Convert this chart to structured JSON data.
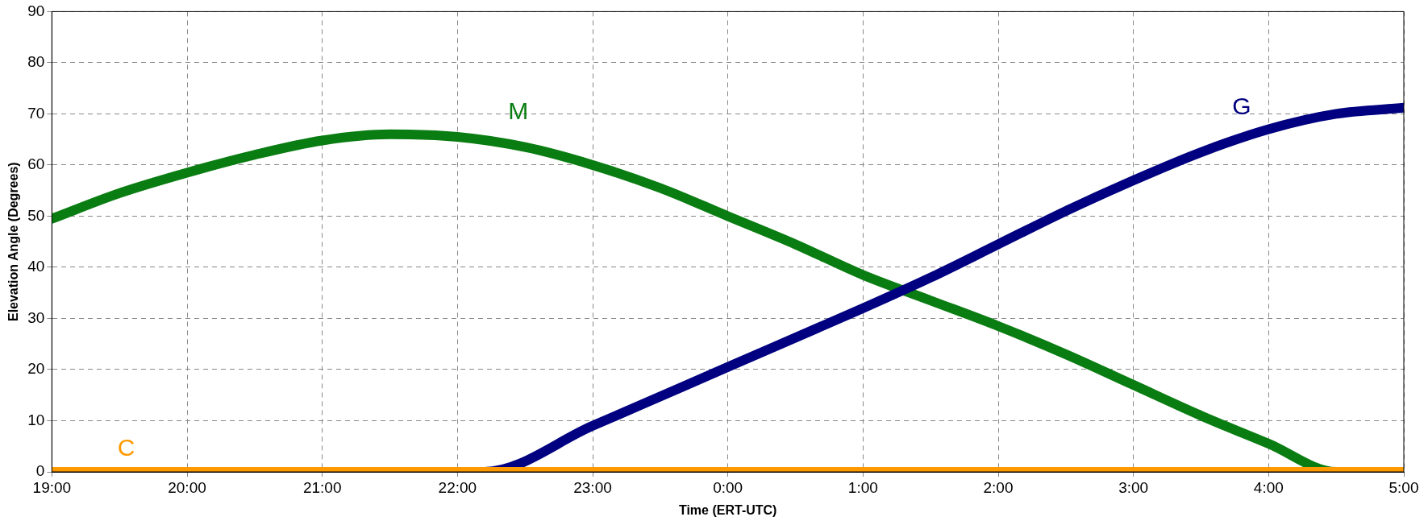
{
  "chart_data": {
    "type": "line",
    "xlabel": "Time (ERT-UTC)",
    "ylabel": "Elevation Angle (Degrees)",
    "xlim": [
      "--01-01T19:00",
      "--01-02T05:00"
    ],
    "xticks": [
      {
        "value": "--01-01T19:00",
        "label": "19:00"
      },
      {
        "value": "--01-01T20:00",
        "label": "20:00"
      },
      {
        "value": "--01-01T21:00",
        "label": "21:00"
      },
      {
        "value": "--01-01T22:00",
        "label": "22:00"
      },
      {
        "value": "--01-01T23:00",
        "label": "23:00"
      },
      {
        "value": "--01-02T00:00",
        "label": "0:00"
      },
      {
        "value": "--01-02T01:00",
        "label": "1:00"
      },
      {
        "value": "--01-02T02:00",
        "label": "2:00"
      },
      {
        "value": "--01-02T03:00",
        "label": "3:00"
      },
      {
        "value": "--01-02T04:00",
        "label": "4:00"
      },
      {
        "value": "--01-02T05:00",
        "label": "5:00"
      }
    ],
    "ylim": [
      0,
      90
    ],
    "yticks": [
      0,
      10,
      20,
      30,
      40,
      50,
      60,
      70,
      80,
      90
    ],
    "grid": true,
    "marker": "none",
    "line_style": "solid",
    "legend": false,
    "series": [
      {
        "name": "M",
        "color": "#0a7d12",
        "x": [
          "--01-01T19:00",
          "--01-01T19:30",
          "--01-01T20:00",
          "--01-01T20:30",
          "--01-01T21:00",
          "--01-01T21:30",
          "--01-01T22:00",
          "--01-01T22:30",
          "--01-01T23:00",
          "--01-01T23:30",
          "--01-02T00:00",
          "--01-02T00:30",
          "--01-02T01:00",
          "--01-02T01:30",
          "--01-02T02:00",
          "--01-02T02:30",
          "--01-02T03:00",
          "--01-02T03:30",
          "--01-02T04:00",
          "--01-02T04:30",
          "--01-02T05:00"
        ],
        "values": [
          49.5,
          54.5,
          58.5,
          62,
          64.8,
          66,
          65.5,
          63.5,
          60,
          55.5,
          50,
          44.5,
          38.5,
          33.5,
          28.5,
          23,
          17,
          11,
          5.5,
          0,
          0
        ]
      },
      {
        "name": "G",
        "color": "#000080",
        "x": [
          "--01-01T19:00",
          "--01-01T22:12",
          "--01-01T23:00",
          "--01-02T00:00",
          "--01-02T01:00",
          "--01-02T01:30",
          "--01-02T02:00",
          "--01-02T02:30",
          "--01-02T03:00",
          "--01-02T03:30",
          "--01-02T04:00",
          "--01-02T04:30",
          "--01-02T05:00"
        ],
        "values": [
          0,
          0,
          9,
          20.5,
          32,
          38,
          44.5,
          51,
          57,
          62.5,
          67,
          70,
          71.2
        ]
      },
      {
        "name": "C",
        "color": "#ff9900",
        "x": [
          "--01-01T19:00",
          "--01-02T05:00"
        ],
        "values": [
          0,
          0
        ]
      }
    ]
  }
}
